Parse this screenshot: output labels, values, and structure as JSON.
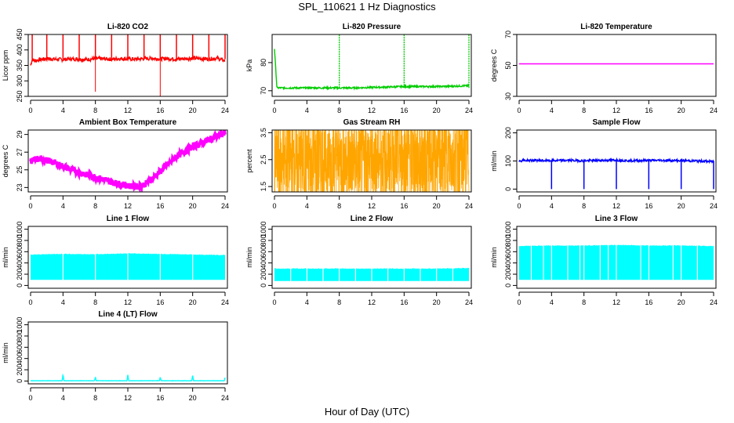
{
  "figure": {
    "title": "SPL_110621  1 Hz Diagnostics",
    "xlabel": "Hour of Day (UTC)"
  },
  "chart_data": [
    {
      "type": "line",
      "title": "Li-820 CO2",
      "ylabel": "Licor ppm",
      "xlim": [
        0,
        24
      ],
      "ylim": [
        250,
        450
      ],
      "xticks": [
        0,
        4,
        8,
        12,
        16,
        20,
        24
      ],
      "yticks": [
        250,
        300,
        350,
        400,
        450
      ],
      "color": "#ff0000",
      "series": [
        {
          "x": [
            0,
            0.2,
            0.5,
            1,
            2,
            3,
            4,
            5,
            6,
            7,
            8,
            9,
            10,
            11,
            12,
            13,
            14,
            15,
            16,
            17,
            18,
            19,
            20,
            21,
            22,
            23,
            24
          ],
          "values": [
            350,
            370,
            365,
            368,
            372,
            370,
            369,
            371,
            370,
            369,
            372,
            371,
            370,
            372,
            371,
            370,
            372,
            373,
            371,
            372,
            370,
            372,
            373,
            372,
            371,
            373,
            365
          ]
        }
      ]
    },
    {
      "type": "line",
      "title": "Li-820 Pressure",
      "ylabel": "kPa",
      "xlim": [
        0,
        24
      ],
      "ylim": [
        68,
        90
      ],
      "xticks": [
        0,
        4,
        8,
        12,
        16,
        20,
        24
      ],
      "yticks": [
        70,
        80
      ],
      "color": "#00cc00",
      "series": [
        {
          "x": [
            0,
            0.3,
            1,
            2,
            4,
            6,
            8,
            10,
            12,
            14,
            16,
            18,
            20,
            22,
            24
          ],
          "values": [
            85,
            71,
            71,
            71,
            71,
            71,
            71,
            71,
            71.2,
            71.3,
            71.5,
            71.5,
            71.5,
            71.6,
            71.8
          ]
        }
      ]
    },
    {
      "type": "line",
      "title": "Li-820 Temperature",
      "ylabel": "degrees C",
      "xlim": [
        0,
        24
      ],
      "ylim": [
        30,
        70
      ],
      "xticks": [
        0,
        4,
        8,
        12,
        16,
        20,
        24
      ],
      "yticks": [
        30,
        50,
        70
      ],
      "color": "#ff00ff",
      "series": [
        {
          "x": [
            0,
            24
          ],
          "values": [
            51,
            51
          ]
        }
      ]
    },
    {
      "type": "line",
      "title": "Ambient Box Temperature",
      "ylabel": "degrees C",
      "xlim": [
        0,
        24
      ],
      "ylim": [
        22.5,
        29.5
      ],
      "xticks": [
        0,
        4,
        8,
        12,
        16,
        20,
        24
      ],
      "yticks": [
        23,
        25,
        27,
        29
      ],
      "color": "#ff00ff",
      "series": [
        {
          "x": [
            0,
            1,
            2,
            3,
            4,
            5,
            6,
            7,
            8,
            9,
            10,
            11,
            12,
            13,
            14,
            15,
            16,
            17,
            18,
            19,
            20,
            21,
            22,
            23,
            24
          ],
          "values": [
            26.0,
            26.2,
            26.1,
            25.8,
            25.4,
            25.0,
            24.7,
            24.4,
            24.2,
            23.9,
            23.6,
            23.4,
            23.2,
            23.1,
            23.3,
            24.0,
            24.8,
            25.7,
            26.5,
            27.1,
            27.6,
            28.0,
            28.4,
            28.8,
            29.2
          ]
        }
      ]
    },
    {
      "type": "line",
      "title": "Gas Stream RH",
      "ylabel": "percent",
      "xlim": [
        0,
        24
      ],
      "ylim": [
        1.3,
        3.6
      ],
      "xticks": [
        0,
        4,
        8,
        12,
        16,
        20,
        24
      ],
      "yticks": [
        1.5,
        2.5,
        3.5
      ],
      "color": "#ffa500",
      "series": [
        {
          "x": [
            0,
            2,
            4,
            6,
            8,
            10,
            12,
            14,
            16,
            18,
            20,
            22,
            24
          ],
          "values": [
            2.4,
            2.5,
            2.4,
            2.5,
            2.5,
            2.4,
            2.5,
            2.5,
            2.6,
            2.5,
            2.5,
            2.6,
            2.6
          ]
        }
      ]
    },
    {
      "type": "line",
      "title": "Sample Flow",
      "ylabel": "ml/min",
      "xlim": [
        0,
        24
      ],
      "ylim": [
        -10,
        210
      ],
      "xticks": [
        0,
        4,
        8,
        12,
        16,
        20,
        24
      ],
      "yticks": [
        0,
        100,
        200
      ],
      "color": "#0000ff",
      "series": [
        {
          "x": [
            0,
            0.5,
            2,
            4,
            6,
            8,
            10,
            12,
            14,
            16,
            18,
            20,
            22,
            24
          ],
          "values": [
            100,
            102,
            102,
            101,
            102,
            101,
            102,
            103,
            101,
            102,
            102,
            101,
            100,
            98
          ]
        }
      ]
    },
    {
      "type": "area",
      "title": "Line 1 Flow",
      "ylabel": "ml/min",
      "xlim": [
        0,
        24
      ],
      "ylim": [
        -50,
        1050
      ],
      "xticks": [
        0,
        4,
        8,
        12,
        16,
        20,
        24
      ],
      "yticks": [
        0,
        200,
        400,
        600,
        800,
        1000
      ],
      "color": "#00ffff",
      "series": [
        {
          "x": [
            0,
            4,
            8,
            12,
            16,
            20,
            24
          ],
          "low": [
            100,
            100,
            100,
            100,
            100,
            100,
            100
          ],
          "high": [
            550,
            560,
            555,
            570,
            560,
            550,
            540
          ]
        }
      ]
    },
    {
      "type": "area",
      "title": "Line 2 Flow",
      "ylabel": "ml/min",
      "xlim": [
        0,
        24
      ],
      "ylim": [
        -50,
        1050
      ],
      "xticks": [
        0,
        4,
        8,
        12,
        16,
        20,
        24
      ],
      "yticks": [
        0,
        200,
        400,
        600,
        800,
        1000
      ],
      "color": "#00ffff",
      "series": [
        {
          "x": [
            0,
            4,
            8,
            12,
            16,
            20,
            24
          ],
          "low": [
            80,
            80,
            80,
            80,
            80,
            80,
            80
          ],
          "high": [
            300,
            300,
            300,
            300,
            300,
            300,
            310
          ]
        }
      ]
    },
    {
      "type": "area",
      "title": "Line 3 Flow",
      "ylabel": "ml/min",
      "xlim": [
        0,
        24
      ],
      "ylim": [
        -50,
        1050
      ],
      "xticks": [
        0,
        4,
        8,
        12,
        16,
        20,
        24
      ],
      "yticks": [
        0,
        200,
        400,
        600,
        800,
        1000
      ],
      "color": "#00ffff",
      "series": [
        {
          "x": [
            0,
            4,
            8,
            12,
            16,
            20,
            24
          ],
          "low": [
            100,
            100,
            100,
            100,
            100,
            100,
            100
          ],
          "high": [
            700,
            710,
            710,
            720,
            710,
            710,
            700
          ]
        }
      ]
    },
    {
      "type": "line",
      "title": "Line 4 (LT) Flow",
      "ylabel": "ml/min",
      "xlim": [
        0,
        24
      ],
      "ylim": [
        -50,
        1050
      ],
      "xticks": [
        0,
        4,
        8,
        12,
        16,
        20,
        24
      ],
      "yticks": [
        0,
        200,
        400,
        600,
        800,
        1000
      ],
      "color": "#00ffff",
      "series": [
        {
          "x": [
            0,
            3.9,
            4,
            4.1,
            7.9,
            8,
            8.1,
            11.9,
            12,
            12.1,
            15.9,
            16,
            16.1,
            19.9,
            20,
            20.1,
            23.9,
            24
          ],
          "values": [
            5,
            5,
            120,
            5,
            5,
            70,
            5,
            5,
            110,
            5,
            5,
            70,
            5,
            5,
            110,
            5,
            5,
            60
          ]
        }
      ]
    }
  ]
}
